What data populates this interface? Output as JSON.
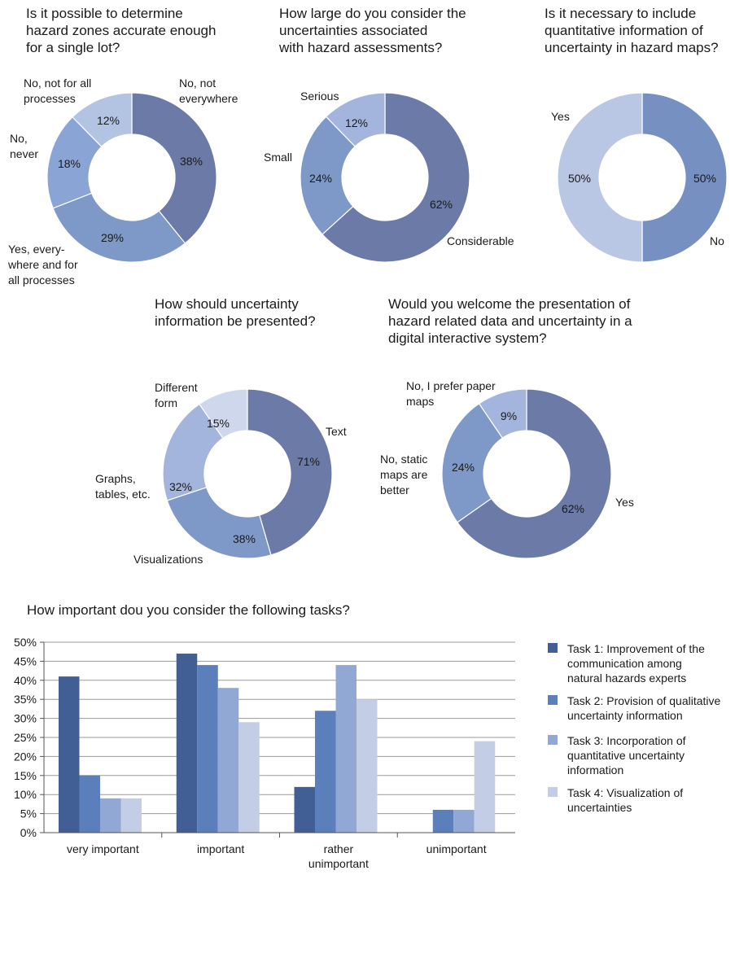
{
  "colors": {
    "donut_dark": "#6b7aa6",
    "donut_mid": "#7e98c7",
    "donut_light": "#a3b5dc",
    "donut_lighter": "#b9c6e4",
    "task1": "#415f94",
    "task2": "#5a7fba",
    "task3": "#91a8d4",
    "task4": "#c3cde6",
    "grid": "#9a9a9a",
    "axis": "#555555"
  },
  "chart_data": [
    {
      "type": "pie",
      "title": [
        "Is it possible to determine",
        "hazard zones accurate enough",
        "for a single lot?"
      ],
      "slices": [
        {
          "label": [
            "No, not",
            "everywhere"
          ],
          "value": 38,
          "value_label": "38%",
          "color": "#6b7aa6"
        },
        {
          "label": [
            "Yes, every-",
            "where and for",
            "all processes"
          ],
          "value": 29,
          "value_label": "29%",
          "color": "#7e98c7"
        },
        {
          "label": [
            "No,",
            "never"
          ],
          "value": 18,
          "value_label": "18%",
          "color": "#8aa4d5"
        },
        {
          "label": [
            "No, not for all",
            "processes"
          ],
          "value": 12,
          "value_label": "12%",
          "color": "#b3c3e2"
        }
      ]
    },
    {
      "type": "pie",
      "title": [
        "How large do you consider the",
        "uncertainties associated",
        "with hazard assessments?"
      ],
      "slices": [
        {
          "label": [
            "Considerable"
          ],
          "value": 62,
          "value_label": "62%",
          "color": "#6b7aa6"
        },
        {
          "label": [
            "Small"
          ],
          "value": 24,
          "value_label": "24%",
          "color": "#7e98c7"
        },
        {
          "label": [
            "Serious"
          ],
          "value": 12,
          "value_label": "12%",
          "color": "#a3b5dc"
        }
      ]
    },
    {
      "type": "pie",
      "title": [
        "Is it necessary to include",
        "quantitative information of",
        "uncertainty in hazard maps?"
      ],
      "slices": [
        {
          "label": [
            "No"
          ],
          "value": 50,
          "value_label": "50%",
          "color": "#7690c2"
        },
        {
          "label": [
            "Yes"
          ],
          "value": 50,
          "value_label": "50%",
          "color": "#b9c6e4"
        }
      ]
    },
    {
      "type": "pie",
      "title": [
        "How should uncertainty",
        "information be presented?"
      ],
      "slices": [
        {
          "label": [
            "Text"
          ],
          "value": 71,
          "value_label": "71%",
          "color": "#6b7aa6"
        },
        {
          "label": [
            "Visualizations"
          ],
          "value": 38,
          "value_label": "38%",
          "color": "#7e98c7"
        },
        {
          "label": [
            "Graphs,",
            "tables, etc."
          ],
          "value": 32,
          "value_label": "32%",
          "color": "#a3b5dc"
        },
        {
          "label": [
            "Different",
            "form"
          ],
          "value": 15,
          "value_label": "15%",
          "color": "#cfd7ec"
        }
      ]
    },
    {
      "type": "pie",
      "title": [
        "Would you welcome the presentation of",
        "hazard related data and uncertainty in a",
        "digital interactive system?"
      ],
      "slices": [
        {
          "label": [
            "Yes"
          ],
          "value": 62,
          "value_label": "62%",
          "color": "#6b7aa6"
        },
        {
          "label": [
            "No, static",
            "maps are",
            "better"
          ],
          "value": 24,
          "value_label": "24%",
          "color": "#7e98c7"
        },
        {
          "label": [
            "No, I prefer paper",
            "maps"
          ],
          "value": 9,
          "value_label": "9%",
          "color": "#a3b5dc"
        }
      ]
    },
    {
      "type": "bar",
      "title": "How important dou you consider the following tasks?",
      "categories": [
        [
          "very important"
        ],
        [
          "important"
        ],
        [
          "rather",
          "unimportant"
        ],
        [
          "unimportant"
        ]
      ],
      "series": [
        {
          "name": [
            "Task 1: Improvement of the",
            "communication among",
            "natural hazards experts"
          ],
          "values": [
            41,
            47,
            12,
            0
          ],
          "color": "#415f94"
        },
        {
          "name": [
            "Task 2: Provision of qualitative",
            "uncertainty information"
          ],
          "values": [
            15,
            44,
            32,
            6
          ],
          "color": "#5a7fba"
        },
        {
          "name": [
            "Task 3: Incorporation of",
            "quantitative uncertainty",
            "information"
          ],
          "values": [
            9,
            38,
            44,
            6
          ],
          "color": "#91a8d4"
        },
        {
          "name": [
            "Task 4: Visualization of",
            "uncertainties"
          ],
          "values": [
            9,
            29,
            35,
            24
          ],
          "color": "#c3cde6"
        }
      ],
      "ylim": [
        0,
        50
      ],
      "yticks": [
        "0%",
        "5%",
        "10%",
        "15%",
        "20%",
        "25%",
        "30%",
        "35%",
        "40%",
        "45%",
        "50%"
      ],
      "grid": true,
      "legend": "right"
    }
  ]
}
